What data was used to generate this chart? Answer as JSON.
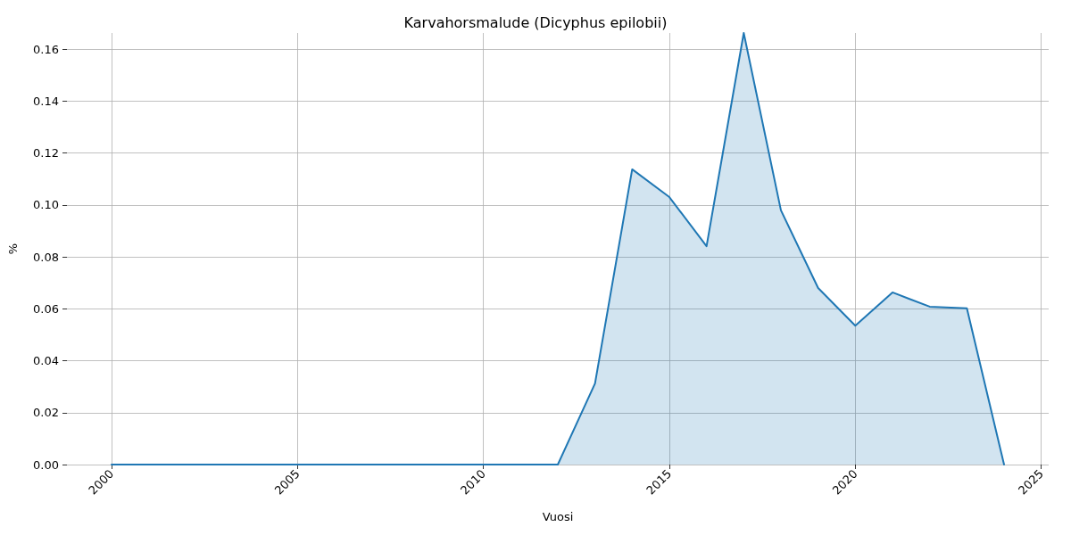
{
  "chart_data": {
    "type": "area",
    "title": "Karvahorsmalude (Dicyphus epilobii)",
    "xlabel": "Vuosi",
    "ylabel": "%",
    "x": [
      2000,
      2001,
      2002,
      2003,
      2004,
      2005,
      2006,
      2007,
      2008,
      2009,
      2010,
      2011,
      2012,
      2013,
      2014,
      2015,
      2016,
      2017,
      2018,
      2019,
      2020,
      2021,
      2022,
      2023,
      2024
    ],
    "values": [
      0,
      0,
      0,
      0,
      0,
      0,
      0,
      0,
      0,
      0,
      0,
      0,
      0,
      0.0312,
      0.1137,
      0.103,
      0.0841,
      0.1662,
      0.0979,
      0.068,
      0.0535,
      0.0663,
      0.0608,
      0.0602,
      0
    ],
    "color": "#1f77b4",
    "xlim": [
      1998.8,
      2025.2
    ],
    "xticks": [
      2000,
      2005,
      2010,
      2015,
      2020,
      2025
    ],
    "ylim": [
      0,
      0.1662
    ],
    "yticks": [
      {
        "value": 0,
        "label": "0.00"
      },
      {
        "value": 0.02,
        "label": "0.02"
      },
      {
        "value": 0.04,
        "label": "0.04"
      },
      {
        "value": 0.06,
        "label": "0.06"
      },
      {
        "value": 0.08,
        "label": "0.08"
      },
      {
        "value": 0.1,
        "label": "0.10"
      },
      {
        "value": 0.12,
        "label": "0.12"
      },
      {
        "value": 0.14,
        "label": "0.14"
      },
      {
        "value": 0.16,
        "label": "0.16"
      }
    ],
    "grid": true
  }
}
